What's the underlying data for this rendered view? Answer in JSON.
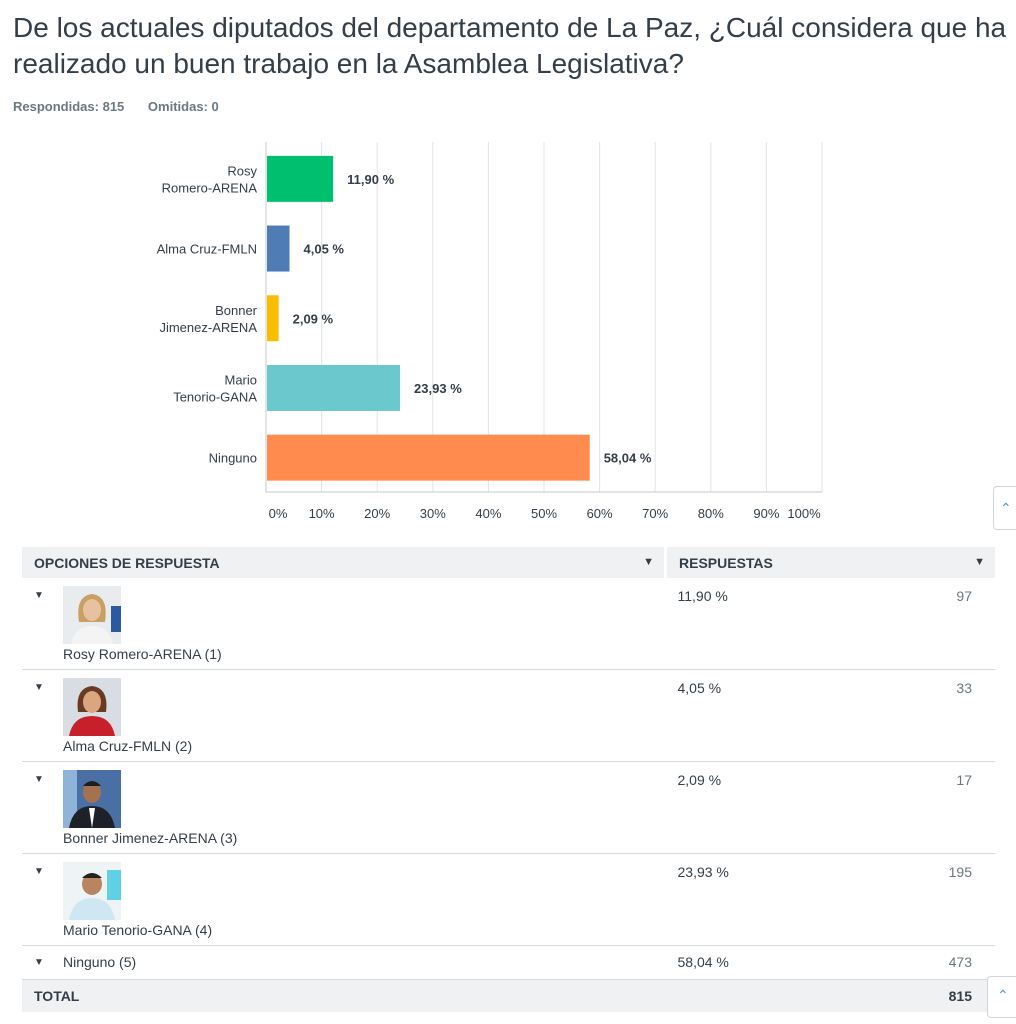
{
  "question": {
    "title": "De los actuales diputados del departamento de La Paz, ¿Cuál considera que ha realizado un buen trabajo en la Asamblea Legislativa?",
    "answered_label": "Respondidas:",
    "answered": "815",
    "skipped_label": "Omitidas:",
    "skipped": "0"
  },
  "chart_data": {
    "type": "bar",
    "orientation": "horizontal",
    "categories": [
      [
        "Rosy",
        "Romero-ARENA"
      ],
      [
        "Alma Cruz-FMLN"
      ],
      [
        "Bonner",
        "Jimenez-ARENA"
      ],
      [
        "Mario",
        "Tenorio-GANA"
      ],
      [
        "Ninguno"
      ]
    ],
    "values": [
      11.9,
      4.05,
      2.09,
      23.93,
      58.04
    ],
    "value_labels": [
      "11,90 %",
      "4,05 %",
      "2,09 %",
      "23,93 %",
      "58,04 %"
    ],
    "colors": [
      "#00bf6f",
      "#507cb6",
      "#f9be00",
      "#6bc8cd",
      "#ff8b4f"
    ],
    "xlim": [
      0,
      100
    ],
    "x_ticks": [
      "0%",
      "10%",
      "20%",
      "30%",
      "40%",
      "50%",
      "60%",
      "70%",
      "80%",
      "90%",
      "100%"
    ],
    "grid": true
  },
  "table": {
    "col_options": "OPCIONES DE RESPUESTA",
    "col_responses": "RESPUESTAS",
    "rows": [
      {
        "name": "Rosy Romero-ARENA (1)",
        "pct": "11,90 %",
        "count": "97"
      },
      {
        "name": "Alma Cruz-FMLN (2)",
        "pct": "4,05 %",
        "count": "33"
      },
      {
        "name": "Bonner Jimenez-ARENA (3)",
        "pct": "2,09 %",
        "count": "17"
      },
      {
        "name": "Mario Tenorio-GANA (4)",
        "pct": "23,93 %",
        "count": "195"
      },
      {
        "name": "Ninguno (5)",
        "pct": "58,04 %",
        "count": "473"
      }
    ],
    "total_label": "TOTAL",
    "total": "815"
  },
  "icons": {
    "row_toggle": "caret-down-icon",
    "side_tab": "chevron-up-icon"
  }
}
